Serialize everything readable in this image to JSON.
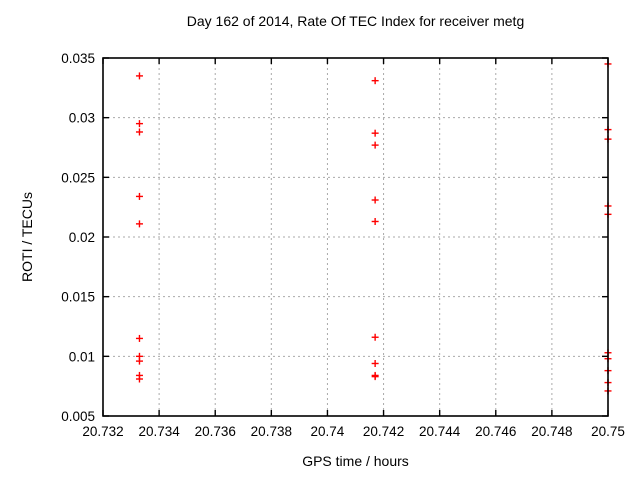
{
  "chart_data": {
    "type": "scatter",
    "title": "Day 162 of 2014, Rate Of TEC Index for receiver metg",
    "xlabel": "GPS time / hours",
    "ylabel": "ROTI / TECUs",
    "xlim": [
      20.732,
      20.75
    ],
    "ylim": [
      0.005,
      0.035
    ],
    "xticks": [
      20.732,
      20.734,
      20.736,
      20.738,
      20.74,
      20.742,
      20.744,
      20.746,
      20.748,
      20.75
    ],
    "xtick_labels": [
      "20.732",
      "20.734",
      "20.736",
      "20.738",
      "20.74",
      "20.742",
      "20.744",
      "20.746",
      "20.748",
      "20.75"
    ],
    "yticks": [
      0.005,
      0.01,
      0.015,
      0.02,
      0.025,
      0.03,
      0.035
    ],
    "ytick_labels": [
      "0.005",
      "0.01",
      "0.015",
      "0.02",
      "0.025",
      "0.03",
      "0.035"
    ],
    "grid": true,
    "legend": "none",
    "marker": "plus",
    "colors": {
      "marker": "#ff0000",
      "grid": "#aaaaaa",
      "border": "#000000",
      "text": "#000000",
      "background": "#ffffff"
    },
    "series": [
      {
        "name": "ROTI",
        "points": [
          [
            20.7333,
            0.0335
          ],
          [
            20.7333,
            0.0295
          ],
          [
            20.7333,
            0.0288
          ],
          [
            20.7333,
            0.0234
          ],
          [
            20.7333,
            0.0211
          ],
          [
            20.7333,
            0.0115
          ],
          [
            20.7333,
            0.01
          ],
          [
            20.7333,
            0.0096
          ],
          [
            20.7333,
            0.0084
          ],
          [
            20.7333,
            0.0081
          ],
          [
            20.7417,
            0.0331
          ],
          [
            20.7417,
            0.0287
          ],
          [
            20.7417,
            0.0277
          ],
          [
            20.7417,
            0.0231
          ],
          [
            20.7417,
            0.0213
          ],
          [
            20.7417,
            0.0116
          ],
          [
            20.7417,
            0.0094
          ],
          [
            20.7417,
            0.0084
          ],
          [
            20.7417,
            0.0083
          ],
          [
            20.75,
            0.0345
          ],
          [
            20.75,
            0.029
          ],
          [
            20.75,
            0.0282
          ],
          [
            20.75,
            0.0226
          ],
          [
            20.75,
            0.0219
          ],
          [
            20.75,
            0.0103
          ],
          [
            20.75,
            0.0098
          ],
          [
            20.75,
            0.0088
          ],
          [
            20.75,
            0.0078
          ],
          [
            20.75,
            0.0071
          ]
        ]
      }
    ]
  }
}
